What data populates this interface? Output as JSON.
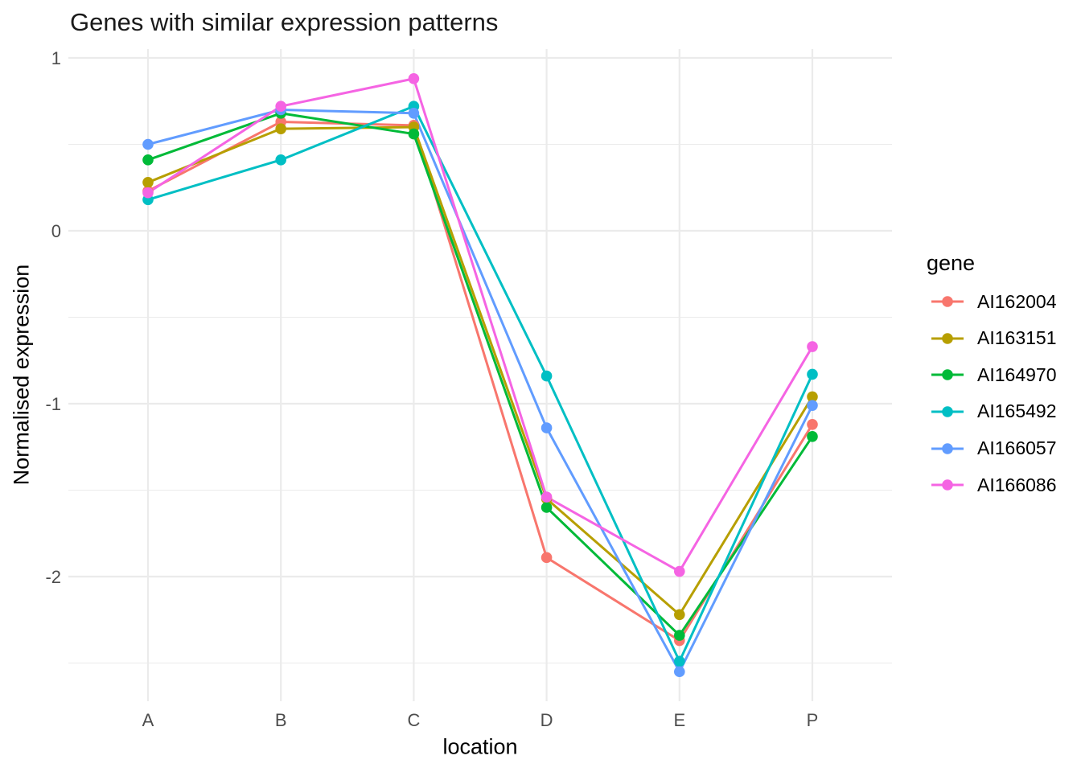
{
  "chart_data": {
    "type": "line",
    "title": "Genes with similar expression patterns",
    "xlabel": "location",
    "ylabel": "Normalised expression",
    "categories": [
      "A",
      "B",
      "C",
      "D",
      "E",
      "P"
    ],
    "y_ticks": [
      1,
      0,
      -1,
      -2
    ],
    "y_minor_ticks": [
      0.5,
      -0.5,
      -1.5,
      -2.5
    ],
    "ylim": [
      -2.72,
      1.05
    ],
    "grid": true,
    "legend": {
      "title": "gene",
      "position": "right"
    },
    "series": [
      {
        "name": "AI162004",
        "color": "#F8766D",
        "values": [
          0.23,
          0.63,
          0.61,
          -1.89,
          -2.37,
          -1.12
        ]
      },
      {
        "name": "AI163151",
        "color": "#B79F00",
        "values": [
          0.28,
          0.59,
          0.6,
          -1.55,
          -2.22,
          -0.96
        ]
      },
      {
        "name": "AI164970",
        "color": "#00BA38",
        "values": [
          0.41,
          0.68,
          0.56,
          -1.6,
          -2.34,
          -1.19
        ]
      },
      {
        "name": "AI165492",
        "color": "#00BFC4",
        "values": [
          0.18,
          0.41,
          0.72,
          -0.84,
          -2.49,
          -0.83
        ]
      },
      {
        "name": "AI166057",
        "color": "#619CFF",
        "values": [
          0.5,
          0.7,
          0.68,
          -1.14,
          -2.55,
          -1.01
        ]
      },
      {
        "name": "AI166086",
        "color": "#F564E3",
        "values": [
          0.22,
          0.72,
          0.88,
          -1.54,
          -1.97,
          -0.67
        ]
      }
    ]
  }
}
